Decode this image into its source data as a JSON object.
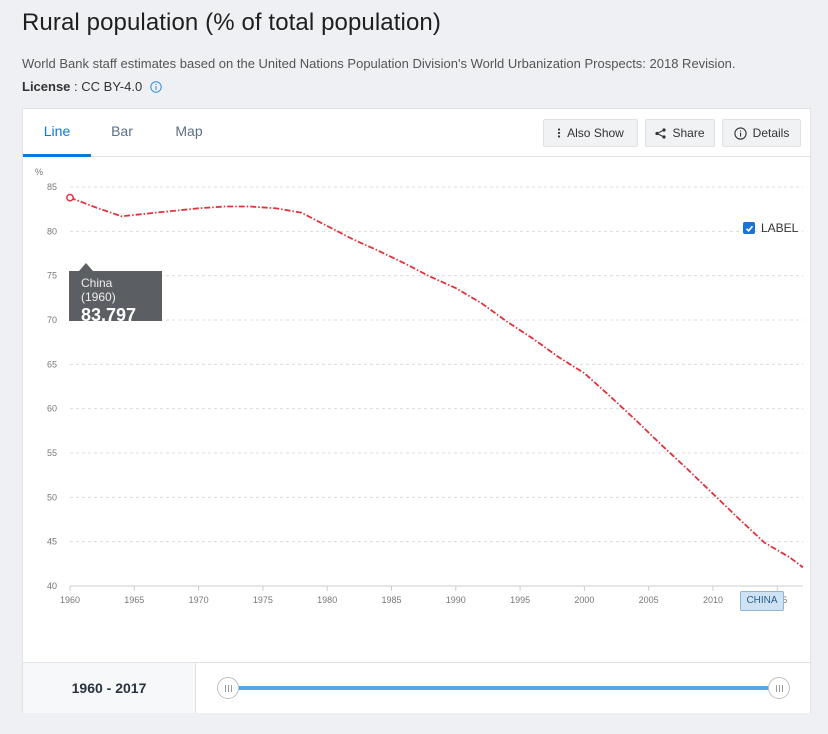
{
  "page": {
    "title": "Rural population (% of total population)",
    "description": "World Bank staff estimates based on the United Nations Population Division's World Urbanization Prospects: 2018 Revision.",
    "license_label": "License",
    "license_sep": " : ",
    "license_value": "CC BY-4.0"
  },
  "tabs": [
    {
      "label": "Line",
      "active": true
    },
    {
      "label": "Bar",
      "active": false
    },
    {
      "label": "Map",
      "active": false
    }
  ],
  "toolbar": {
    "also_show": "Also Show",
    "share": "Share",
    "details": "Details"
  },
  "label_toggle": {
    "text": "LABEL",
    "checked": true
  },
  "tooltip": {
    "name": "China (1960)",
    "value": "83.797"
  },
  "series_tag": "CHINA",
  "footer": {
    "range": "1960 - 2017"
  },
  "colors": {
    "series": "#e0323c",
    "accent": "#0a7ad8",
    "grid": "#dcdcdc"
  },
  "chart_data": {
    "type": "line",
    "ylabel": "%",
    "xlim": [
      1960,
      2017
    ],
    "ylim": [
      40,
      85
    ],
    "x_ticks": [
      1960,
      1965,
      1970,
      1975,
      1980,
      1985,
      1990,
      1995,
      2000,
      2005,
      2010,
      2015
    ],
    "y_ticks": [
      40,
      45,
      50,
      55,
      60,
      65,
      70,
      75,
      80,
      85
    ],
    "grid": true,
    "series": [
      {
        "name": "China",
        "x": [
          1960,
          1962,
          1964,
          1966,
          1968,
          1970,
          1972,
          1974,
          1976,
          1978,
          1980,
          1982,
          1984,
          1986,
          1988,
          1990,
          1992,
          1994,
          1996,
          1998,
          2000,
          2002,
          2004,
          2006,
          2008,
          2010,
          2012,
          2014,
          2016,
          2017
        ],
        "values": [
          83.8,
          82.7,
          81.7,
          82.0,
          82.3,
          82.6,
          82.8,
          82.8,
          82.6,
          82.1,
          80.6,
          79.1,
          77.8,
          76.4,
          74.9,
          73.6,
          71.9,
          69.8,
          67.9,
          65.8,
          64.0,
          61.4,
          58.7,
          55.9,
          53.2,
          50.4,
          47.6,
          44.9,
          43.2,
          42.1
        ]
      }
    ]
  }
}
